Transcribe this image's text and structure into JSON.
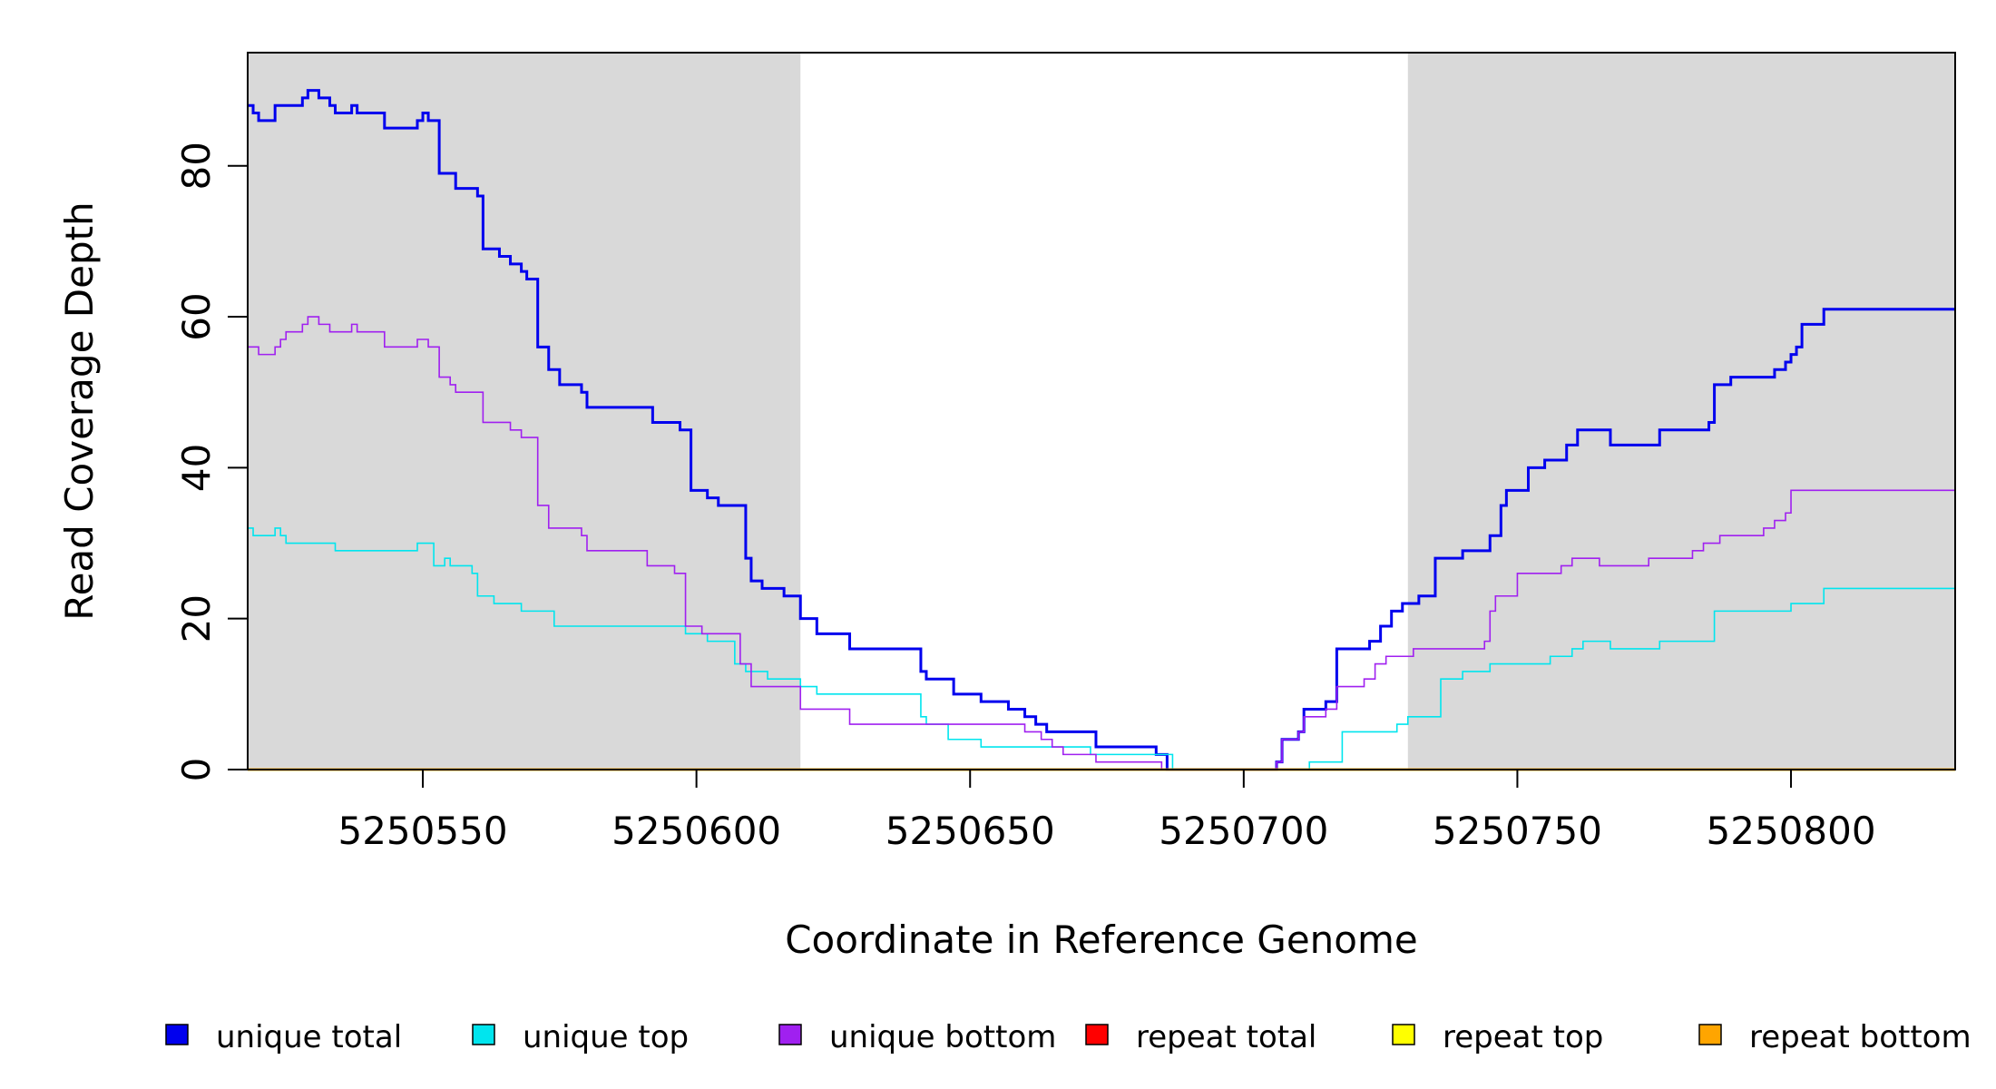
{
  "chart_data": {
    "type": "line",
    "step": true,
    "title": "",
    "xlabel": "Coordinate in Reference Genome",
    "ylabel": "Read Coverage Depth",
    "xlim": [
      5250518,
      5250830
    ],
    "ylim": [
      0,
      95
    ],
    "xticks": [
      5250550,
      5250600,
      5250650,
      5250700,
      5250750,
      5250800
    ],
    "yticks": [
      0,
      20,
      40,
      60,
      80
    ],
    "shaded_regions": [
      [
        5250518,
        5250619
      ],
      [
        5250730,
        5250830
      ]
    ],
    "shade_color": "#d9d9d9",
    "series": [
      {
        "name": "unique total",
        "color": "#0000ee",
        "points": [
          [
            5250518,
            88
          ],
          [
            5250519,
            87
          ],
          [
            5250520,
            86
          ],
          [
            5250523,
            88
          ],
          [
            5250528,
            89
          ],
          [
            5250529,
            90
          ],
          [
            5250531,
            89
          ],
          [
            5250533,
            88
          ],
          [
            5250534,
            87
          ],
          [
            5250537,
            88
          ],
          [
            5250538,
            87
          ],
          [
            5250543,
            85
          ],
          [
            5250549,
            86
          ],
          [
            5250550,
            87
          ],
          [
            5250551,
            86
          ],
          [
            5250553,
            79
          ],
          [
            5250556,
            77
          ],
          [
            5250560,
            76
          ],
          [
            5250561,
            69
          ],
          [
            5250564,
            68
          ],
          [
            5250566,
            67
          ],
          [
            5250568,
            66
          ],
          [
            5250569,
            65
          ],
          [
            5250571,
            56
          ],
          [
            5250573,
            53
          ],
          [
            5250575,
            51
          ],
          [
            5250579,
            50
          ],
          [
            5250580,
            48
          ],
          [
            5250592,
            46
          ],
          [
            5250597,
            45
          ],
          [
            5250599,
            37
          ],
          [
            5250602,
            36
          ],
          [
            5250604,
            35
          ],
          [
            5250609,
            28
          ],
          [
            5250610,
            25
          ],
          [
            5250612,
            24
          ],
          [
            5250616,
            23
          ],
          [
            5250619,
            20
          ],
          [
            5250622,
            18
          ],
          [
            5250628,
            16
          ],
          [
            5250641,
            13
          ],
          [
            5250642,
            12
          ],
          [
            5250647,
            10
          ],
          [
            5250652,
            9
          ],
          [
            5250657,
            8
          ],
          [
            5250660,
            7
          ],
          [
            5250662,
            6
          ],
          [
            5250664,
            5
          ],
          [
            5250673,
            3
          ],
          [
            5250684,
            2
          ],
          [
            5250686,
            0
          ],
          [
            5250706,
            1
          ],
          [
            5250707,
            4
          ],
          [
            5250710,
            5
          ],
          [
            5250711,
            8
          ],
          [
            5250715,
            9
          ],
          [
            5250717,
            16
          ],
          [
            5250723,
            17
          ],
          [
            5250725,
            19
          ],
          [
            5250727,
            21
          ],
          [
            5250729,
            22
          ],
          [
            5250732,
            23
          ],
          [
            5250735,
            28
          ],
          [
            5250740,
            29
          ],
          [
            5250745,
            31
          ],
          [
            5250747,
            35
          ],
          [
            5250748,
            37
          ],
          [
            5250752,
            40
          ],
          [
            5250755,
            41
          ],
          [
            5250759,
            43
          ],
          [
            5250761,
            45
          ],
          [
            5250767,
            43
          ],
          [
            5250776,
            45
          ],
          [
            5250785,
            46
          ],
          [
            5250786,
            51
          ],
          [
            5250789,
            52
          ],
          [
            5250797,
            53
          ],
          [
            5250799,
            54
          ],
          [
            5250800,
            55
          ],
          [
            5250801,
            56
          ],
          [
            5250802,
            59
          ],
          [
            5250806,
            61
          ],
          [
            5250830,
            61
          ]
        ]
      },
      {
        "name": "unique top",
        "color": "#00e5ee",
        "points": [
          [
            5250518,
            32
          ],
          [
            5250519,
            31
          ],
          [
            5250523,
            32
          ],
          [
            5250524,
            31
          ],
          [
            5250525,
            30
          ],
          [
            5250534,
            29
          ],
          [
            5250549,
            30
          ],
          [
            5250552,
            27
          ],
          [
            5250554,
            28
          ],
          [
            5250555,
            27
          ],
          [
            5250559,
            26
          ],
          [
            5250560,
            23
          ],
          [
            5250563,
            22
          ],
          [
            5250568,
            21
          ],
          [
            5250574,
            19
          ],
          [
            5250598,
            18
          ],
          [
            5250602,
            17
          ],
          [
            5250607,
            14
          ],
          [
            5250609,
            13
          ],
          [
            5250613,
            12
          ],
          [
            5250619,
            11
          ],
          [
            5250622,
            10
          ],
          [
            5250641,
            7
          ],
          [
            5250642,
            6
          ],
          [
            5250646,
            4
          ],
          [
            5250652,
            3
          ],
          [
            5250669,
            3
          ],
          [
            5250672,
            2
          ],
          [
            5250687,
            0
          ],
          [
            5250712,
            1
          ],
          [
            5250718,
            5
          ],
          [
            5250728,
            6
          ],
          [
            5250730,
            7
          ],
          [
            5250736,
            12
          ],
          [
            5250740,
            13
          ],
          [
            5250745,
            14
          ],
          [
            5250756,
            15
          ],
          [
            5250760,
            16
          ],
          [
            5250762,
            17
          ],
          [
            5250767,
            16
          ],
          [
            5250776,
            17
          ],
          [
            5250786,
            21
          ],
          [
            5250800,
            22
          ],
          [
            5250806,
            24
          ],
          [
            5250830,
            24
          ]
        ]
      },
      {
        "name": "unique bottom",
        "color": "#a020f0",
        "points": [
          [
            5250518,
            56
          ],
          [
            5250520,
            55
          ],
          [
            5250523,
            56
          ],
          [
            5250524,
            57
          ],
          [
            5250525,
            58
          ],
          [
            5250528,
            59
          ],
          [
            5250529,
            60
          ],
          [
            5250531,
            59
          ],
          [
            5250533,
            58
          ],
          [
            5250537,
            59
          ],
          [
            5250538,
            58
          ],
          [
            5250543,
            56
          ],
          [
            5250549,
            57
          ],
          [
            5250551,
            56
          ],
          [
            5250553,
            52
          ],
          [
            5250555,
            51
          ],
          [
            5250556,
            50
          ],
          [
            5250561,
            46
          ],
          [
            5250566,
            45
          ],
          [
            5250568,
            44
          ],
          [
            5250571,
            35
          ],
          [
            5250573,
            32
          ],
          [
            5250579,
            31
          ],
          [
            5250580,
            29
          ],
          [
            5250591,
            27
          ],
          [
            5250596,
            26
          ],
          [
            5250598,
            19
          ],
          [
            5250601,
            18
          ],
          [
            5250608,
            14
          ],
          [
            5250610,
            11
          ],
          [
            5250619,
            8
          ],
          [
            5250628,
            6
          ],
          [
            5250660,
            5
          ],
          [
            5250663,
            4
          ],
          [
            5250665,
            3
          ],
          [
            5250667,
            2
          ],
          [
            5250673,
            1
          ],
          [
            5250685,
            0
          ],
          [
            5250706,
            1
          ],
          [
            5250707,
            4
          ],
          [
            5250710,
            5
          ],
          [
            5250711,
            7
          ],
          [
            5250715,
            8
          ],
          [
            5250717,
            11
          ],
          [
            5250722,
            12
          ],
          [
            5250724,
            14
          ],
          [
            5250726,
            15
          ],
          [
            5250731,
            16
          ],
          [
            5250744,
            17
          ],
          [
            5250745,
            21
          ],
          [
            5250746,
            23
          ],
          [
            5250750,
            26
          ],
          [
            5250758,
            27
          ],
          [
            5250760,
            28
          ],
          [
            5250765,
            27
          ],
          [
            5250774,
            28
          ],
          [
            5250782,
            29
          ],
          [
            5250784,
            30
          ],
          [
            5250787,
            31
          ],
          [
            5250795,
            32
          ],
          [
            5250797,
            33
          ],
          [
            5250799,
            34
          ],
          [
            5250800,
            37
          ],
          [
            5250830,
            37
          ]
        ]
      },
      {
        "name": "repeat total",
        "color": "#ff0000",
        "points": [
          [
            5250518,
            0
          ],
          [
            5250830,
            0
          ]
        ]
      },
      {
        "name": "repeat top",
        "color": "#ffff00",
        "points": [
          [
            5250518,
            0
          ],
          [
            5250830,
            0
          ]
        ]
      },
      {
        "name": "repeat bottom",
        "color": "#ffa500",
        "points": [
          [
            5250518,
            0
          ],
          [
            5250830,
            0
          ]
        ]
      }
    ],
    "legend": {
      "position": "bottom",
      "entries": [
        {
          "label": "unique total",
          "color": "#0000ee"
        },
        {
          "label": "unique top",
          "color": "#00e5ee"
        },
        {
          "label": "unique bottom",
          "color": "#a020f0"
        },
        {
          "label": "repeat total",
          "color": "#ff0000"
        },
        {
          "label": "repeat top",
          "color": "#ffff00"
        },
        {
          "label": "repeat bottom",
          "color": "#ffa500"
        }
      ]
    }
  }
}
